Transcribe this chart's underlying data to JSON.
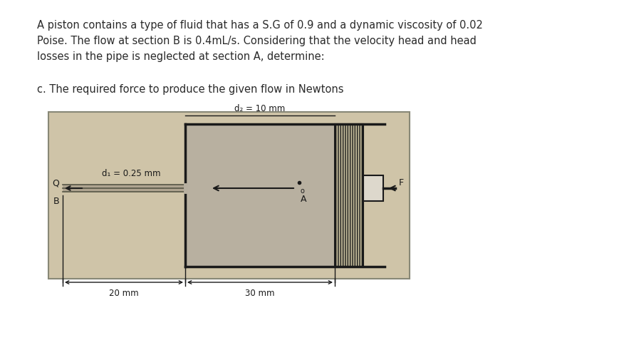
{
  "bg_color": "#ffffff",
  "diagram_bg": "#cfc4a8",
  "cyl_fill": "#b8b0a0",
  "title_text": "A piston contains a type of fluid that has a S.G of 0.9 and a dynamic viscosity of 0.02\nPoise. The flow at section B is 0.4mL/s. Considering that the velocity head and head\nlosses in the pipe is neglected at section A, determine:",
  "subtitle_text": "c. The required force to produce the given flow in Newtons",
  "label_d2": "d₂ = 10 mm",
  "label_d1": "d₁ = 0.25 mm",
  "label_Q": "Q",
  "label_B": "B",
  "label_F": "F",
  "label_A": "A",
  "label_o": "o",
  "label_20mm": "20 mm",
  "label_30mm": "30 mm",
  "dark": "#1a1a1a",
  "pipe_fill": "#9a9080",
  "piston_fill": "#e8e0d0",
  "hatch_fill": "#888880"
}
